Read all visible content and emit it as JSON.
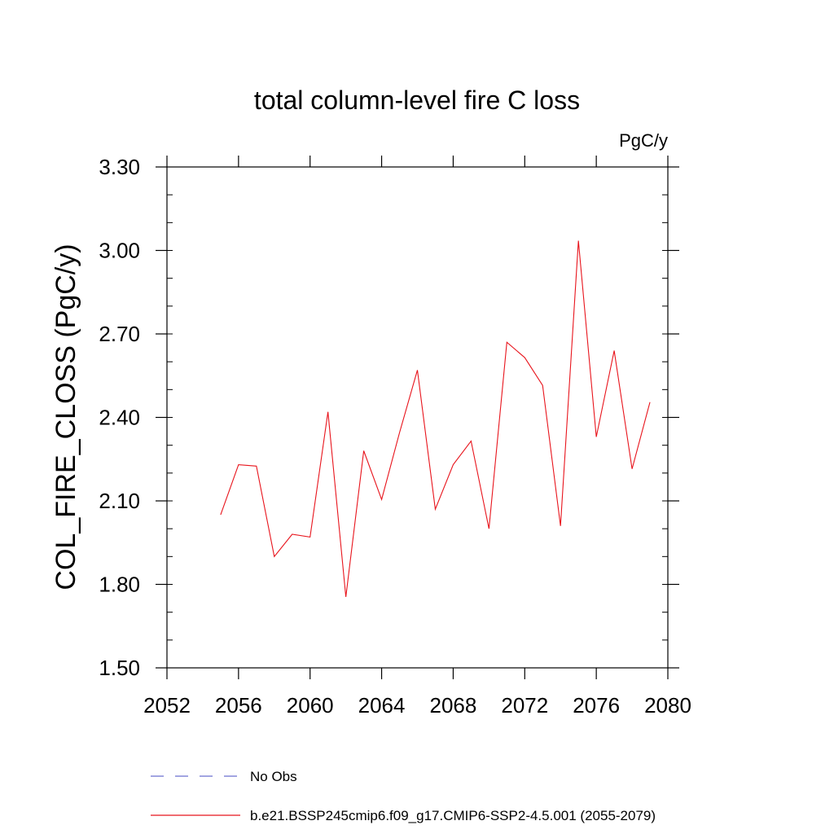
{
  "chart_data": {
    "type": "line",
    "title": "total column-level fire C loss",
    "units_label": "PgC/y",
    "xlabel": "",
    "ylabel": "COL_FIRE_CLOSS  (PgC/y)",
    "xlim": [
      2052,
      2080
    ],
    "ylim": [
      1.5,
      3.3
    ],
    "x_major_ticks": [
      2052,
      2056,
      2060,
      2064,
      2068,
      2072,
      2076,
      2080
    ],
    "x_tick_labels": [
      "2052",
      "2056",
      "2060",
      "2064",
      "2068",
      "2072",
      "2076",
      "2080"
    ],
    "y_major_ticks": [
      1.5,
      1.8,
      2.1,
      2.4,
      2.7,
      3.0,
      3.3
    ],
    "y_tick_labels": [
      "1.50",
      "1.80",
      "2.10",
      "2.40",
      "2.70",
      "3.00",
      "3.30"
    ],
    "grid": false,
    "legend_position": "bottom",
    "series": [
      {
        "name": "b.e21.BSSP245cmip6.f09_g17.CMIP6-SSP2-4.5.001 (2055-2079)",
        "color": "#e8141c",
        "style": "solid",
        "x": [
          2055,
          2056,
          2057,
          2058,
          2059,
          2060,
          2061,
          2062,
          2063,
          2064,
          2065,
          2066,
          2067,
          2068,
          2069,
          2070,
          2071,
          2072,
          2073,
          2074,
          2075,
          2076,
          2077,
          2078,
          2079
        ],
        "y": [
          2.05,
          2.23,
          2.225,
          1.9,
          1.98,
          1.97,
          2.42,
          1.755,
          2.28,
          2.105,
          2.345,
          2.57,
          2.07,
          2.23,
          2.315,
          2.0,
          2.67,
          2.615,
          2.515,
          2.01,
          3.035,
          2.33,
          2.64,
          2.215,
          2.455
        ]
      }
    ],
    "legend": [
      {
        "label": "No Obs",
        "color": "#6b6fcf",
        "style": "dashed"
      },
      {
        "label": "b.e21.BSSP245cmip6.f09_g17.CMIP6-SSP2-4.5.001 (2055-2079)",
        "color": "#e8141c",
        "style": "solid"
      }
    ]
  }
}
